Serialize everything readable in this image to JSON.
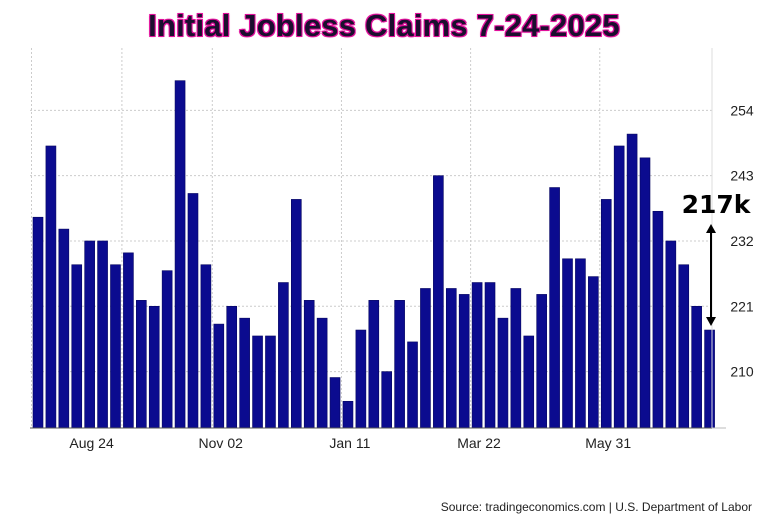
{
  "chart_data": {
    "type": "bar",
    "title": "Initial Jobless Claims 7-24-2025",
    "xlabel": "",
    "ylabel": "",
    "x_tick_labels": [
      "Aug 24",
      "Nov 02",
      "Jan 11",
      "Mar 22",
      "May 31"
    ],
    "y_ticks": [
      210,
      221,
      232,
      243,
      254
    ],
    "ylim": [
      200.5,
      264.5
    ],
    "grid": true,
    "bar_color": "#0b0b8f",
    "values": [
      236,
      248,
      234,
      228,
      232,
      232,
      228,
      230,
      222,
      221,
      227,
      259,
      240,
      228,
      218,
      221,
      219,
      216,
      216,
      225,
      239,
      222,
      219,
      209,
      205,
      217,
      222,
      210,
      222,
      215,
      224,
      243,
      224,
      223,
      225,
      225,
      219,
      224,
      216,
      223,
      241,
      229,
      229,
      226,
      239,
      248,
      250,
      246,
      237,
      232,
      228,
      221,
      217
    ],
    "annotation": "217k",
    "source": "Source: tradingeconomics.com | U.S. Department of Labor"
  }
}
